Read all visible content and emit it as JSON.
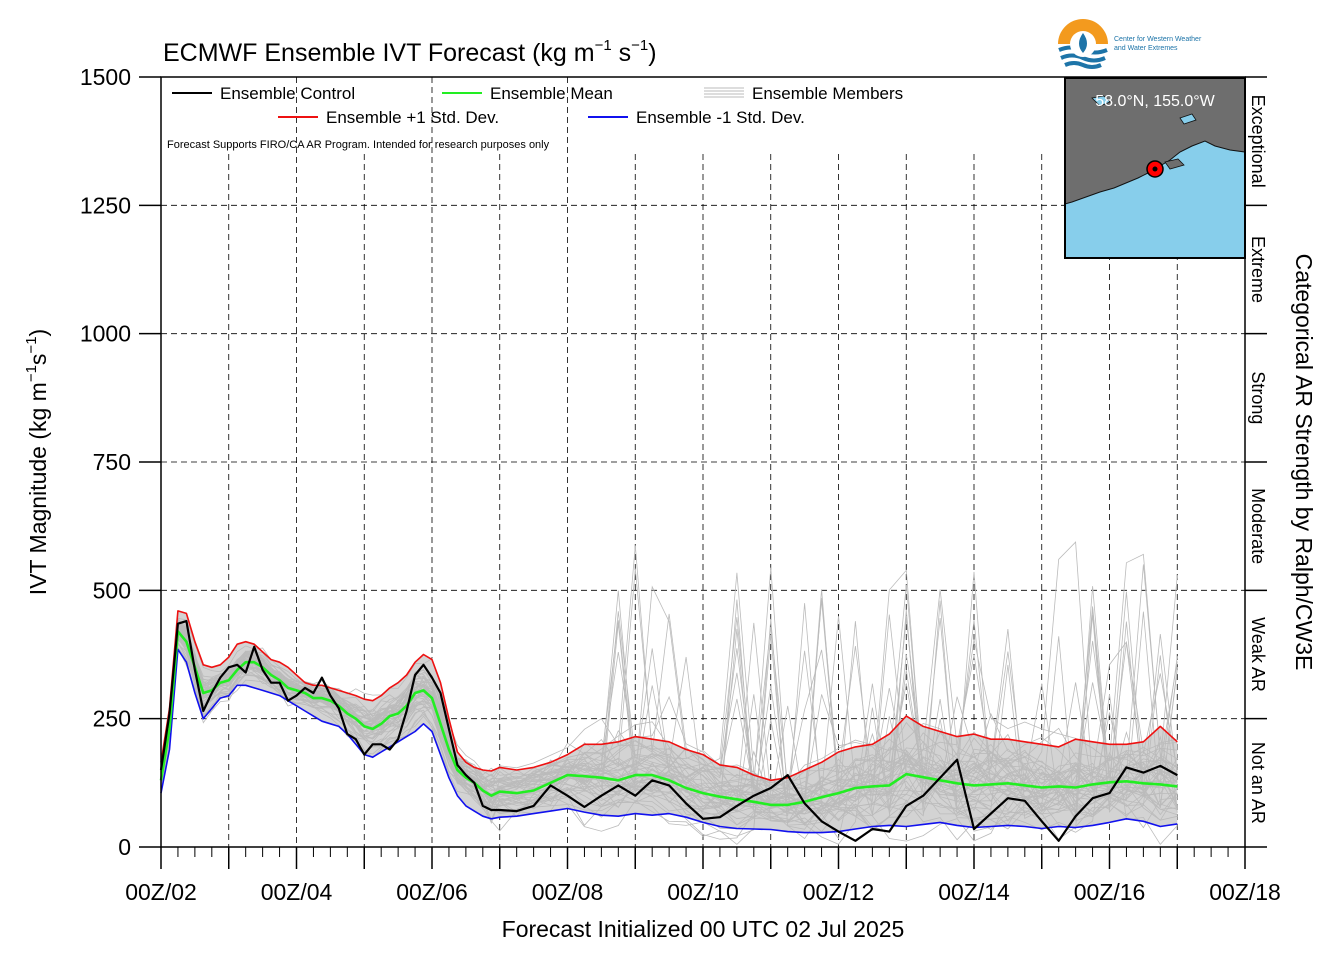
{
  "chart_data": {
    "type": "line",
    "title": "ECMWF Ensemble IVT Forecast (kg m⁻¹ s⁻¹)",
    "title_main": "ECMWF Ensemble IVT Forecast (kg m",
    "title_sup1": "−1",
    "title_mid": " s",
    "title_sup2": "−1",
    "title_end": ")",
    "ylabel": "IVT Magnitude (kg m⁻¹s⁻¹)",
    "ylabel_main": "IVT Magnitude (kg m",
    "ylabel_sup1": "−1",
    "ylabel_mid": "s",
    "ylabel_sup2": "−1",
    "ylabel_end": ")",
    "xlabel": "Forecast Initialized 00 UTC 02 Jul 2025",
    "right_label": "Categorical AR Strength by Ralph/CW3E",
    "disclaimer": "Forecast Supports FIRO/CA AR Program. Intended for research purposes only",
    "logo_text": [
      "Center for Western Weather",
      "and Water Extremes"
    ],
    "inset_label": "58.0°N, 155.0°W",
    "ylim": [
      0,
      1500
    ],
    "xlim_days": [
      2,
      18
    ],
    "yticks": [
      0,
      250,
      500,
      750,
      1000,
      1250,
      1500
    ],
    "ytick_labels": [
      "0",
      "250",
      "500",
      "750",
      "1000",
      "1250",
      "1500"
    ],
    "xtick_days": [
      2,
      4,
      6,
      8,
      10,
      12,
      14,
      16,
      18
    ],
    "xtick_labels": [
      "00Z/02",
      "00Z/04",
      "00Z/06",
      "00Z/08",
      "00Z/10",
      "00Z/12",
      "00Z/14",
      "00Z/16",
      "00Z/18"
    ],
    "grid": true,
    "legend": [
      {
        "label": "Ensemble Control",
        "color": "#000000"
      },
      {
        "label": "Ensemble Mean",
        "color": "#22ee22"
      },
      {
        "label": "Ensemble Members",
        "color": "#bbbbbb"
      },
      {
        "label": "Ensemble +1 Std. Dev.",
        "color": "#ee1111"
      },
      {
        "label": "Ensemble -1 Std. Dev.",
        "color": "#1111ee"
      }
    ],
    "categories": [
      {
        "label": "Not an AR",
        "from": 0,
        "to": 250
      },
      {
        "label": "Weak AR",
        "from": 250,
        "to": 500
      },
      {
        "label": "Moderate",
        "from": 500,
        "to": 750
      },
      {
        "label": "Strong",
        "from": 750,
        "to": 1000
      },
      {
        "label": "Extreme",
        "from": 1000,
        "to": 1250
      },
      {
        "label": "Exceptional",
        "from": 1250,
        "to": 1500
      }
    ],
    "series": [
      {
        "name": "Ensemble Control",
        "color": "#000000",
        "x": [
          2.0,
          2.125,
          2.25,
          2.375,
          2.5,
          2.625,
          2.75,
          2.875,
          3.0,
          3.125,
          3.25,
          3.375,
          3.5,
          3.625,
          3.75,
          3.875,
          4.0,
          4.125,
          4.25,
          4.375,
          4.5,
          4.625,
          4.75,
          4.875,
          5.0,
          5.125,
          5.25,
          5.375,
          5.5,
          5.625,
          5.75,
          5.875,
          6.0,
          6.125,
          6.25,
          6.375,
          6.5,
          6.625,
          6.75,
          6.875,
          7.0,
          7.25,
          7.5,
          7.75,
          8.0,
          8.25,
          8.5,
          8.75,
          9.0,
          9.25,
          9.5,
          9.75,
          10.0,
          10.25,
          10.5,
          10.75,
          11.0,
          11.25,
          11.5,
          11.75,
          12.0,
          12.25,
          12.5,
          12.75,
          13.0,
          13.25,
          13.5,
          13.75,
          14.0,
          14.25,
          14.5,
          14.75,
          15.0,
          15.25,
          15.5,
          15.75,
          16.0,
          16.25,
          16.5,
          16.75,
          17.0
        ],
        "values": [
          150,
          260,
          435,
          440,
          345,
          265,
          300,
          330,
          350,
          355,
          340,
          390,
          345,
          320,
          320,
          285,
          295,
          310,
          300,
          330,
          295,
          270,
          220,
          210,
          180,
          200,
          200,
          190,
          210,
          265,
          335,
          355,
          330,
          300,
          230,
          160,
          140,
          125,
          80,
          72,
          72,
          70,
          80,
          120,
          100,
          78,
          100,
          120,
          100,
          130,
          120,
          85,
          55,
          58,
          80,
          100,
          115,
          140,
          85,
          50,
          30,
          12,
          35,
          30,
          80,
          100,
          135,
          170,
          35,
          65,
          95,
          90,
          50,
          12,
          60,
          95,
          105,
          155,
          145,
          158,
          140
        ]
      },
      {
        "name": "Ensemble Mean",
        "color": "#22ee22",
        "x": [
          2.0,
          2.125,
          2.25,
          2.375,
          2.5,
          2.625,
          2.75,
          2.875,
          3.0,
          3.125,
          3.25,
          3.375,
          3.5,
          3.625,
          3.75,
          3.875,
          4.0,
          4.125,
          4.25,
          4.375,
          4.5,
          4.625,
          4.75,
          4.875,
          5.0,
          5.125,
          5.25,
          5.375,
          5.5,
          5.625,
          5.75,
          5.875,
          6.0,
          6.125,
          6.25,
          6.375,
          6.5,
          6.625,
          6.75,
          6.875,
          7.0,
          7.25,
          7.5,
          7.75,
          8.0,
          8.25,
          8.5,
          8.75,
          9.0,
          9.25,
          9.5,
          9.75,
          10.0,
          10.25,
          10.5,
          10.75,
          11.0,
          11.25,
          11.5,
          11.75,
          12.0,
          12.25,
          12.5,
          12.75,
          13.0,
          13.25,
          13.5,
          13.75,
          14.0,
          14.25,
          14.5,
          14.75,
          15.0,
          15.25,
          15.5,
          15.75,
          16.0,
          16.25,
          16.5,
          16.75,
          17.0
        ],
        "values": [
          130,
          230,
          420,
          400,
          350,
          300,
          305,
          320,
          325,
          345,
          360,
          360,
          350,
          335,
          325,
          310,
          305,
          300,
          290,
          290,
          285,
          275,
          260,
          250,
          235,
          230,
          240,
          255,
          260,
          275,
          300,
          305,
          290,
          240,
          190,
          150,
          135,
          125,
          110,
          100,
          108,
          105,
          110,
          125,
          140,
          138,
          135,
          130,
          140,
          140,
          130,
          115,
          105,
          98,
          93,
          88,
          82,
          82,
          88,
          97,
          105,
          115,
          118,
          120,
          142,
          136,
          130,
          124,
          120,
          122,
          124,
          120,
          116,
          118,
          116,
          122,
          126,
          128,
          124,
          122,
          118
        ]
      },
      {
        "name": "Ensemble +1 Std. Dev.",
        "color": "#ee1111",
        "x": [
          2.0,
          2.125,
          2.25,
          2.375,
          2.5,
          2.625,
          2.75,
          2.875,
          3.0,
          3.125,
          3.25,
          3.375,
          3.5,
          3.625,
          3.75,
          3.875,
          4.0,
          4.125,
          4.25,
          4.375,
          4.5,
          4.625,
          4.75,
          4.875,
          5.0,
          5.125,
          5.25,
          5.375,
          5.5,
          5.625,
          5.75,
          5.875,
          6.0,
          6.125,
          6.25,
          6.375,
          6.5,
          6.625,
          6.75,
          6.875,
          7.0,
          7.25,
          7.5,
          7.75,
          8.0,
          8.25,
          8.5,
          8.75,
          9.0,
          9.25,
          9.5,
          9.75,
          10.0,
          10.25,
          10.5,
          10.75,
          11.0,
          11.25,
          11.5,
          11.75,
          12.0,
          12.25,
          12.5,
          12.75,
          13.0,
          13.25,
          13.5,
          13.75,
          14.0,
          14.25,
          14.5,
          14.75,
          15.0,
          15.25,
          15.5,
          15.75,
          16.0,
          16.25,
          16.5,
          16.75,
          17.0
        ],
        "values": [
          165,
          270,
          460,
          455,
          400,
          355,
          350,
          355,
          370,
          395,
          400,
          395,
          380,
          365,
          360,
          350,
          335,
          320,
          315,
          315,
          310,
          305,
          300,
          295,
          288,
          285,
          295,
          310,
          320,
          335,
          360,
          375,
          365,
          320,
          250,
          185,
          165,
          155,
          150,
          148,
          155,
          150,
          155,
          165,
          180,
          200,
          200,
          205,
          215,
          210,
          205,
          190,
          180,
          160,
          155,
          140,
          130,
          135,
          150,
          165,
          185,
          195,
          200,
          220,
          255,
          235,
          225,
          215,
          220,
          210,
          210,
          205,
          200,
          195,
          210,
          205,
          200,
          200,
          205,
          235,
          205
        ]
      },
      {
        "name": "Ensemble -1 Std. Dev.",
        "color": "#1111ee",
        "x": [
          2.0,
          2.125,
          2.25,
          2.375,
          2.5,
          2.625,
          2.75,
          2.875,
          3.0,
          3.125,
          3.25,
          3.375,
          3.5,
          3.625,
          3.75,
          3.875,
          4.0,
          4.125,
          4.25,
          4.375,
          4.5,
          4.625,
          4.75,
          4.875,
          5.0,
          5.125,
          5.25,
          5.375,
          5.5,
          5.625,
          5.75,
          5.875,
          6.0,
          6.125,
          6.25,
          6.375,
          6.5,
          6.625,
          6.75,
          6.875,
          7.0,
          7.25,
          7.5,
          7.75,
          8.0,
          8.25,
          8.5,
          8.75,
          9.0,
          9.25,
          9.5,
          9.75,
          10.0,
          10.25,
          10.5,
          10.75,
          11.0,
          11.25,
          11.5,
          11.75,
          12.0,
          12.25,
          12.5,
          12.75,
          13.0,
          13.25,
          13.5,
          13.75,
          14.0,
          14.25,
          14.5,
          14.75,
          15.0,
          15.25,
          15.5,
          15.75,
          16.0,
          16.25,
          16.5,
          16.75,
          17.0
        ],
        "values": [
          105,
          190,
          385,
          360,
          300,
          250,
          270,
          290,
          295,
          315,
          315,
          310,
          305,
          300,
          295,
          285,
          275,
          265,
          255,
          245,
          240,
          235,
          220,
          200,
          180,
          175,
          185,
          195,
          205,
          215,
          225,
          240,
          225,
          180,
          135,
          100,
          80,
          70,
          60,
          55,
          58,
          60,
          65,
          70,
          75,
          68,
          62,
          60,
          65,
          62,
          65,
          58,
          48,
          40,
          36,
          35,
          34,
          30,
          28,
          28,
          30,
          35,
          40,
          42,
          40,
          44,
          48,
          42,
          38,
          40,
          42,
          40,
          36,
          40,
          38,
          42,
          48,
          55,
          50,
          40,
          45
        ]
      }
    ]
  }
}
